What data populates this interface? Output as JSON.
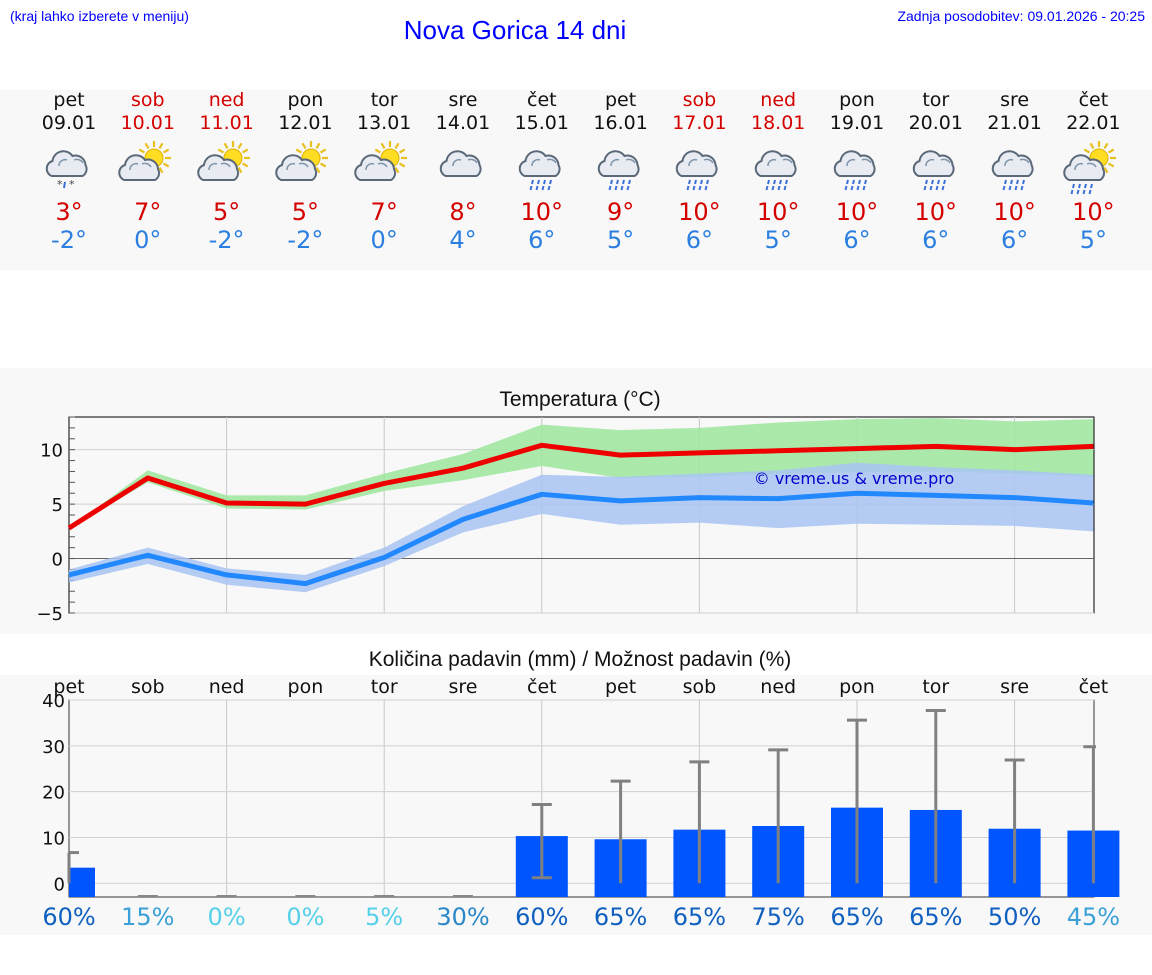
{
  "header": {
    "left_note": "(kraj lahko izberete v meniju)",
    "title": "Nova Gorica 14 dni",
    "updated": "Zadnja posodobitev: 09.01.2026 - 20:25"
  },
  "colors": {
    "link_blue": "#0000ff",
    "weekend_red": "#d40000",
    "tmax_red": "#d40000",
    "tmin_blue": "#2b7fe0",
    "bar_blue": "#0055ff"
  },
  "days": [
    {
      "name": "pet",
      "date": "09.01",
      "weekend": false,
      "icon": "cloud-snow-icon",
      "tmax": "3°",
      "tmin": "-2°"
    },
    {
      "name": "sob",
      "date": "10.01",
      "weekend": true,
      "icon": "sun-cloud-icon",
      "tmax": "7°",
      "tmin": "0°"
    },
    {
      "name": "ned",
      "date": "11.01",
      "weekend": true,
      "icon": "sun-cloud-icon",
      "tmax": "5°",
      "tmin": "-2°"
    },
    {
      "name": "pon",
      "date": "12.01",
      "weekend": false,
      "icon": "sun-cloud-icon",
      "tmax": "5°",
      "tmin": "-2°"
    },
    {
      "name": "tor",
      "date": "13.01",
      "weekend": false,
      "icon": "sun-cloud-icon",
      "tmax": "7°",
      "tmin": "0°"
    },
    {
      "name": "sre",
      "date": "14.01",
      "weekend": false,
      "icon": "cloud-icon",
      "tmax": "8°",
      "tmin": "4°"
    },
    {
      "name": "čet",
      "date": "15.01",
      "weekend": false,
      "icon": "cloud-rain-icon",
      "tmax": "10°",
      "tmin": "6°"
    },
    {
      "name": "pet",
      "date": "16.01",
      "weekend": false,
      "icon": "cloud-rain-icon",
      "tmax": "9°",
      "tmin": "5°"
    },
    {
      "name": "sob",
      "date": "17.01",
      "weekend": true,
      "icon": "cloud-rain-icon",
      "tmax": "10°",
      "tmin": "6°"
    },
    {
      "name": "ned",
      "date": "18.01",
      "weekend": true,
      "icon": "cloud-rain-icon",
      "tmax": "10°",
      "tmin": "5°"
    },
    {
      "name": "pon",
      "date": "19.01",
      "weekend": false,
      "icon": "cloud-rain-icon",
      "tmax": "10°",
      "tmin": "6°"
    },
    {
      "name": "tor",
      "date": "20.01",
      "weekend": false,
      "icon": "cloud-rain-icon",
      "tmax": "10°",
      "tmin": "6°"
    },
    {
      "name": "sre",
      "date": "21.01",
      "weekend": false,
      "icon": "cloud-rain-icon",
      "tmax": "10°",
      "tmin": "6°"
    },
    {
      "name": "čet",
      "date": "22.01",
      "weekend": false,
      "icon": "sun-rain-icon",
      "tmax": "10°",
      "tmin": "5°"
    }
  ],
  "chart_data": [
    {
      "type": "line",
      "title": "Temperatura (°C)",
      "watermark": "© vreme.us & vreme.pro",
      "ylim": [
        -5,
        13
      ],
      "yticks": [
        -5,
        0,
        5,
        10
      ],
      "grid": true,
      "series": [
        {
          "name": "max",
          "color": "#ee0000",
          "values": [
            2.8,
            7.4,
            5.1,
            5.0,
            6.9,
            8.3,
            10.4,
            9.5,
            9.7,
            9.9,
            10.1,
            10.3,
            10.0,
            10.3
          ],
          "band_low": [
            2.8,
            7.0,
            4.6,
            4.5,
            6.2,
            7.2,
            8.5,
            7.4,
            7.5,
            7.8,
            7.9,
            8.0,
            7.8,
            7.5
          ],
          "band_high": [
            2.8,
            8.1,
            5.8,
            5.8,
            7.8,
            9.6,
            12.3,
            11.8,
            12.0,
            12.5,
            12.8,
            12.9,
            12.6,
            12.8
          ]
        },
        {
          "name": "min",
          "color": "#2288ff",
          "values": [
            -1.5,
            0.3,
            -1.5,
            -2.3,
            0.1,
            3.6,
            5.9,
            5.3,
            5.6,
            5.5,
            6.0,
            5.8,
            5.6,
            5.1
          ],
          "band_low": [
            -2.2,
            -0.5,
            -2.4,
            -3.1,
            -0.7,
            2.4,
            4.1,
            3.1,
            3.3,
            2.8,
            3.2,
            3.1,
            3.0,
            2.5
          ],
          "band_high": [
            -1.0,
            1.0,
            -0.9,
            -1.5,
            1.0,
            4.8,
            7.7,
            7.5,
            7.8,
            8.1,
            8.8,
            8.4,
            8.1,
            7.7
          ]
        }
      ]
    },
    {
      "type": "bar",
      "title": "Količina padavin (mm) / Možnost padavin (%)",
      "categories": [
        "pet",
        "sob",
        "ned",
        "pon",
        "tor",
        "sre",
        "čet",
        "pet",
        "sob",
        "ned",
        "pon",
        "tor",
        "sre",
        "čet"
      ],
      "ylim": [
        -3,
        40
      ],
      "yticks": [
        0,
        10,
        20,
        30,
        40
      ],
      "grid": true,
      "values": [
        3.4,
        0,
        0,
        0,
        0,
        0,
        10.3,
        9.6,
        11.7,
        12.5,
        16.5,
        16.0,
        11.9,
        11.5
      ],
      "err_low": [
        0,
        0,
        0,
        0,
        0,
        0,
        1.2,
        0,
        0,
        0,
        0,
        0,
        0,
        0
      ],
      "err_high": [
        6.7,
        0,
        0,
        0,
        0,
        0,
        17.2,
        22.3,
        26.5,
        29.1,
        35.6,
        37.7,
        26.9,
        29.8
      ],
      "probability": [
        "60%",
        "15%",
        "0%",
        "0%",
        "5%",
        "30%",
        "60%",
        "65%",
        "65%",
        "75%",
        "65%",
        "65%",
        "50%",
        "45%"
      ],
      "probability_colors": [
        "#1060c0",
        "#3aa0d8",
        "#55d0e8",
        "#55d0e8",
        "#55d0e8",
        "#2a88c8",
        "#1060c0",
        "#1060c0",
        "#1060c0",
        "#1060c0",
        "#1060c0",
        "#1060c0",
        "#1060c0",
        "#3aa0d8"
      ]
    }
  ]
}
